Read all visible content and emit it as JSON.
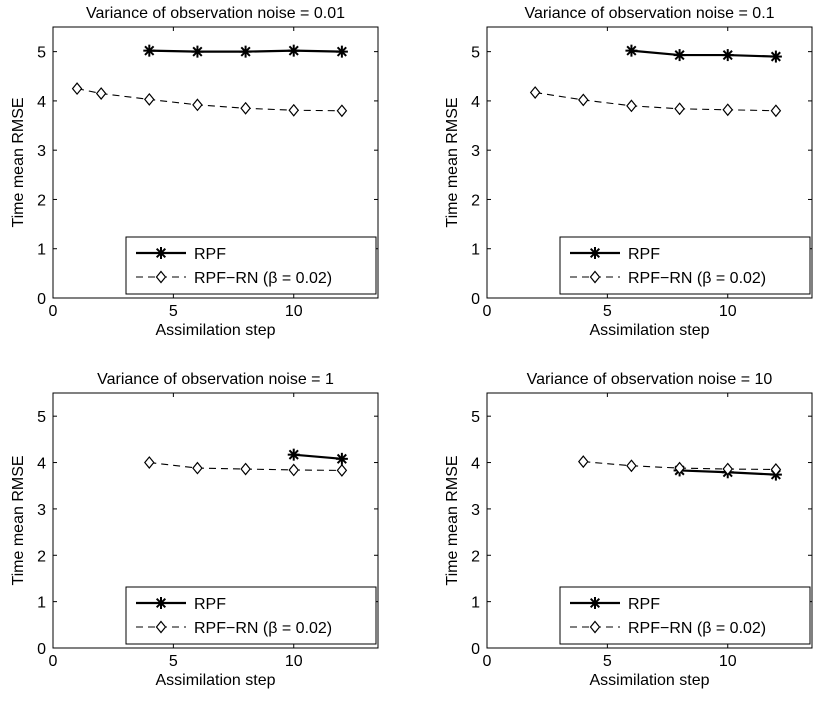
{
  "figure": {
    "panel_count": 4
  },
  "chart_data": [
    {
      "type": "line",
      "title": "Variance of observation noise = 0.01",
      "xlabel": "Assimilation step",
      "ylabel": "Time mean RMSE",
      "xlim": [
        0,
        13.5
      ],
      "ylim": [
        0,
        5.5
      ],
      "xticks": [
        0,
        5,
        10
      ],
      "yticks": [
        0,
        1,
        2,
        3,
        4,
        5
      ],
      "legend_position": "bottom-right",
      "series": [
        {
          "name": "RPF",
          "style": "solid",
          "marker": "asterisk",
          "x": [
            4,
            6,
            8,
            10,
            12
          ],
          "y": [
            5.02,
            5.0,
            5.0,
            5.02,
            5.0
          ]
        },
        {
          "name": "RPF−RN (β = 0.02)",
          "style": "dashed",
          "marker": "diamond",
          "x": [
            1,
            2,
            4,
            6,
            8,
            10,
            12
          ],
          "y": [
            4.25,
            4.15,
            4.03,
            3.92,
            3.85,
            3.81,
            3.8
          ]
        }
      ]
    },
    {
      "type": "line",
      "title": "Variance of observation noise = 0.1",
      "xlabel": "Assimilation step",
      "ylabel": "Time mean RMSE",
      "xlim": [
        0,
        13.5
      ],
      "ylim": [
        0,
        5.5
      ],
      "xticks": [
        0,
        5,
        10
      ],
      "yticks": [
        0,
        1,
        2,
        3,
        4,
        5
      ],
      "legend_position": "bottom-right",
      "series": [
        {
          "name": "RPF",
          "style": "solid",
          "marker": "asterisk",
          "x": [
            6,
            8,
            10,
            12
          ],
          "y": [
            5.02,
            4.93,
            4.93,
            4.9
          ]
        },
        {
          "name": "RPF−RN (β = 0.02)",
          "style": "dashed",
          "marker": "diamond",
          "x": [
            2,
            4,
            6,
            8,
            10,
            12
          ],
          "y": [
            4.17,
            4.02,
            3.9,
            3.84,
            3.82,
            3.8
          ]
        }
      ]
    },
    {
      "type": "line",
      "title": "Variance of observation noise = 1",
      "xlabel": "Assimilation step",
      "ylabel": "Time mean RMSE",
      "xlim": [
        0,
        13.5
      ],
      "ylim": [
        0,
        5.5
      ],
      "xticks": [
        0,
        5,
        10
      ],
      "yticks": [
        0,
        1,
        2,
        3,
        4,
        5
      ],
      "legend_position": "bottom-right",
      "series": [
        {
          "name": "RPF",
          "style": "solid",
          "marker": "asterisk",
          "x": [
            10,
            12
          ],
          "y": [
            4.17,
            4.08
          ]
        },
        {
          "name": "RPF−RN (β = 0.02)",
          "style": "dashed",
          "marker": "diamond",
          "x": [
            4,
            6,
            8,
            10,
            12
          ],
          "y": [
            4.0,
            3.88,
            3.86,
            3.84,
            3.83
          ]
        }
      ]
    },
    {
      "type": "line",
      "title": "Variance of observation noise = 10",
      "xlabel": "Assimilation step",
      "ylabel": "Time mean RMSE",
      "xlim": [
        0,
        13.5
      ],
      "ylim": [
        0,
        5.5
      ],
      "xticks": [
        0,
        5,
        10
      ],
      "yticks": [
        0,
        1,
        2,
        3,
        4,
        5
      ],
      "legend_position": "bottom-right",
      "series": [
        {
          "name": "RPF",
          "style": "solid",
          "marker": "asterisk",
          "x": [
            8,
            10,
            12
          ],
          "y": [
            3.83,
            3.79,
            3.74
          ]
        },
        {
          "name": "RPF−RN (β = 0.02)",
          "style": "dashed",
          "marker": "diamond",
          "x": [
            4,
            6,
            8,
            10,
            12
          ],
          "y": [
            4.02,
            3.93,
            3.88,
            3.86,
            3.85
          ]
        }
      ]
    }
  ]
}
